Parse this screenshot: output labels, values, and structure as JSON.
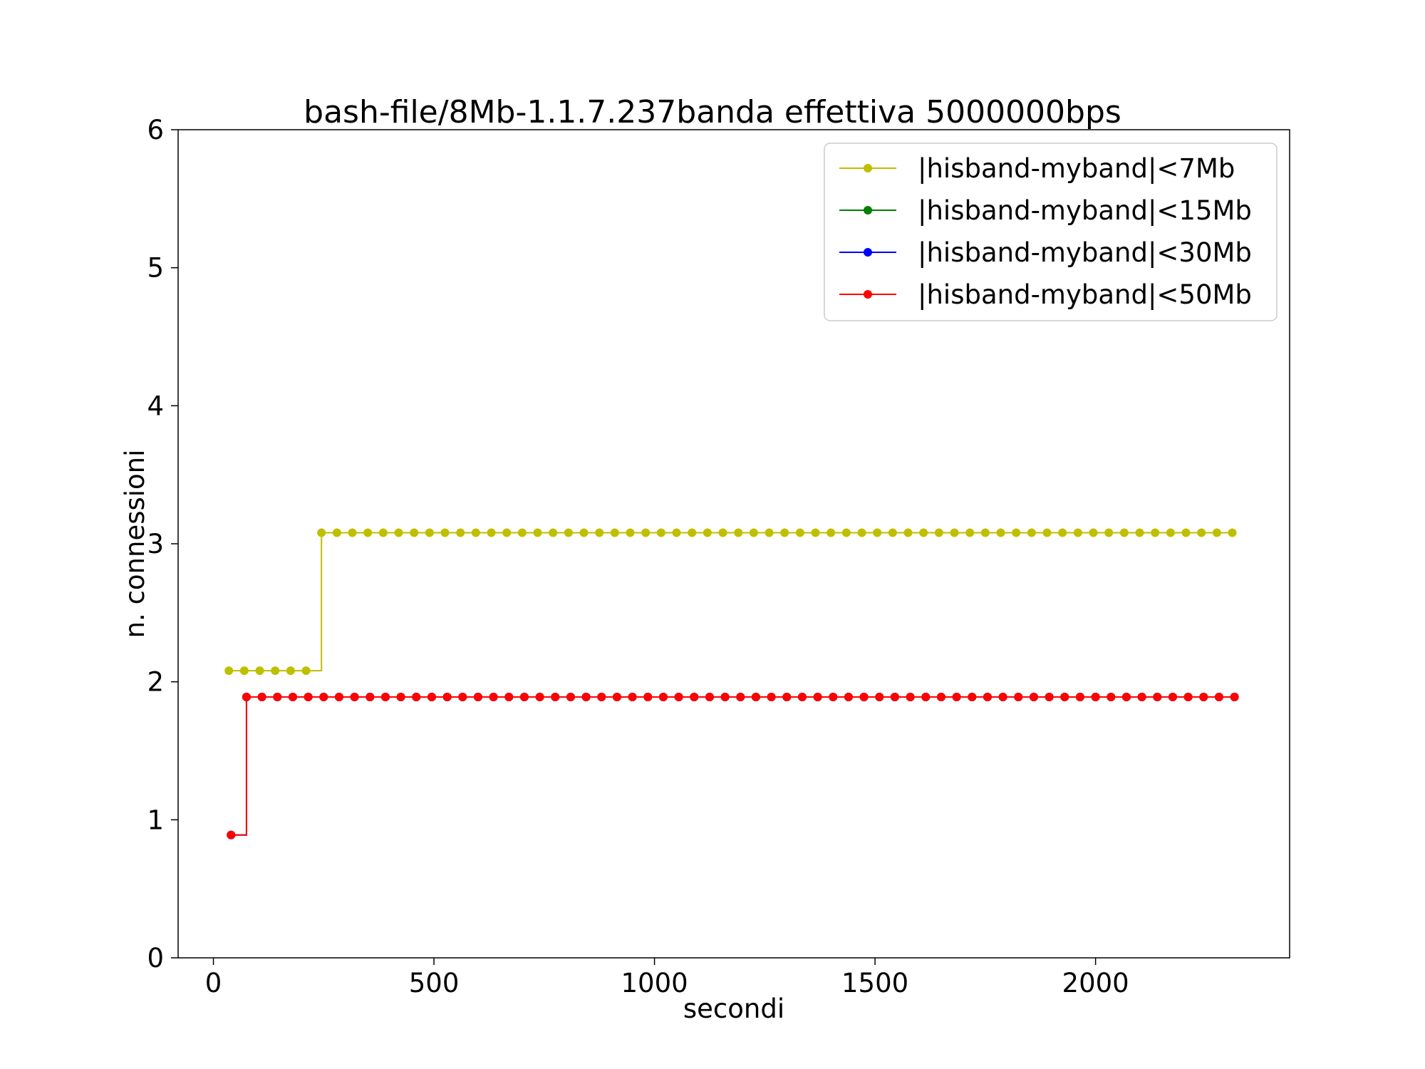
{
  "chart_data": {
    "type": "line",
    "title": "bash-file/8Mb-1.1.7.237banda effettiva 5000000bps",
    "xlabel": "secondi",
    "ylabel": "n. connessioni",
    "xlim": [
      -80,
      2440
    ],
    "ylim": [
      0,
      6
    ],
    "xticks": [
      0,
      500,
      1000,
      1500,
      2000
    ],
    "yticks": [
      0,
      1,
      2,
      3,
      4,
      5,
      6
    ],
    "grid": false,
    "legend_position": "top-right",
    "step": "post",
    "series": [
      {
        "name": "|hisband-myband|<7Mb",
        "color": "#bfbf00",
        "x_start": 35,
        "x_step": 35,
        "x_end": 2310,
        "steps": [
          {
            "from": 35,
            "value": 2.08
          },
          {
            "from": 245,
            "value": 3.08
          }
        ]
      },
      {
        "name": "|hisband-myband|<15Mb",
        "color": "#008000",
        "x_start": 40,
        "x_step": 35,
        "x_end": 2325,
        "steps": [
          {
            "from": 40,
            "value": 0.89
          },
          {
            "from": 75,
            "value": 1.89
          }
        ]
      },
      {
        "name": "|hisband-myband|<30Mb",
        "color": "#0000ff",
        "x_start": 40,
        "x_step": 35,
        "x_end": 2325,
        "steps": [
          {
            "from": 40,
            "value": 0.89
          },
          {
            "from": 75,
            "value": 1.89
          }
        ]
      },
      {
        "name": "|hisband-myband|<50Mb",
        "color": "#ff0000",
        "x_start": 40,
        "x_step": 35,
        "x_end": 2325,
        "steps": [
          {
            "from": 40,
            "value": 0.89
          },
          {
            "from": 75,
            "value": 1.89
          }
        ]
      }
    ]
  }
}
